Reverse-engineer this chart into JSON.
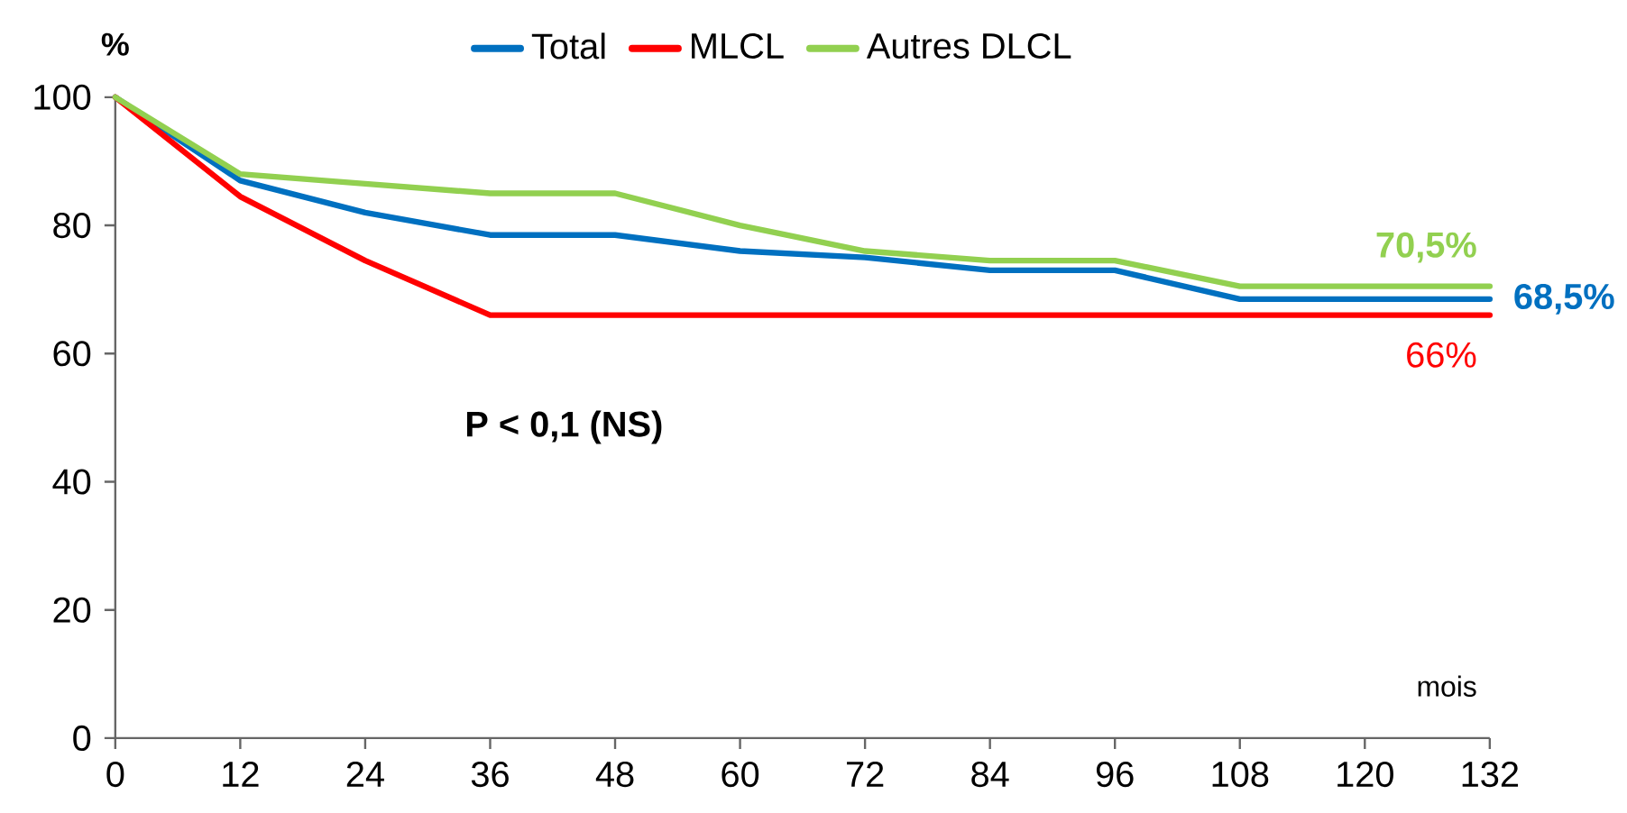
{
  "chart_data": {
    "type": "line",
    "ylabel": "%",
    "xlabel": "mois",
    "legend": "top",
    "grid": false,
    "marker": "none",
    "xlim": [
      0,
      132
    ],
    "xticks": [
      0,
      12,
      24,
      36,
      48,
      60,
      72,
      84,
      96,
      108,
      120,
      132
    ],
    "ylim": [
      0,
      100
    ],
    "yticks": [
      0,
      20,
      40,
      60,
      80,
      100
    ],
    "annotations": [
      "P < 0,1 (NS)"
    ],
    "series": [
      {
        "name": "Total",
        "color": "#0070c0",
        "x": [
          0,
          12,
          24,
          36,
          48,
          60,
          72,
          84,
          96,
          108,
          132
        ],
        "values": [
          100,
          87,
          82,
          78.5,
          78.5,
          76,
          75,
          73,
          73,
          68.5,
          68.5
        ],
        "value_labels": [
          null,
          null,
          null,
          null,
          null,
          null,
          null,
          null,
          null,
          null,
          "68,5%"
        ]
      },
      {
        "name": "MLCL",
        "color": "#ff0000",
        "x": [
          0,
          12,
          24,
          36,
          132
        ],
        "values": [
          100,
          84.5,
          74.5,
          66,
          66
        ],
        "value_labels": [
          null,
          null,
          null,
          null,
          "66%"
        ]
      },
      {
        "name": "Autres DLCL",
        "color": "#92d050",
        "x": [
          0,
          12,
          24,
          36,
          48,
          60,
          72,
          84,
          96,
          108,
          132
        ],
        "values": [
          100,
          88,
          86.5,
          85,
          85,
          80,
          76,
          74.5,
          74.5,
          70.5,
          70.5
        ],
        "value_labels": [
          null,
          null,
          null,
          null,
          null,
          null,
          null,
          null,
          null,
          null,
          "70,5%"
        ]
      }
    ]
  }
}
